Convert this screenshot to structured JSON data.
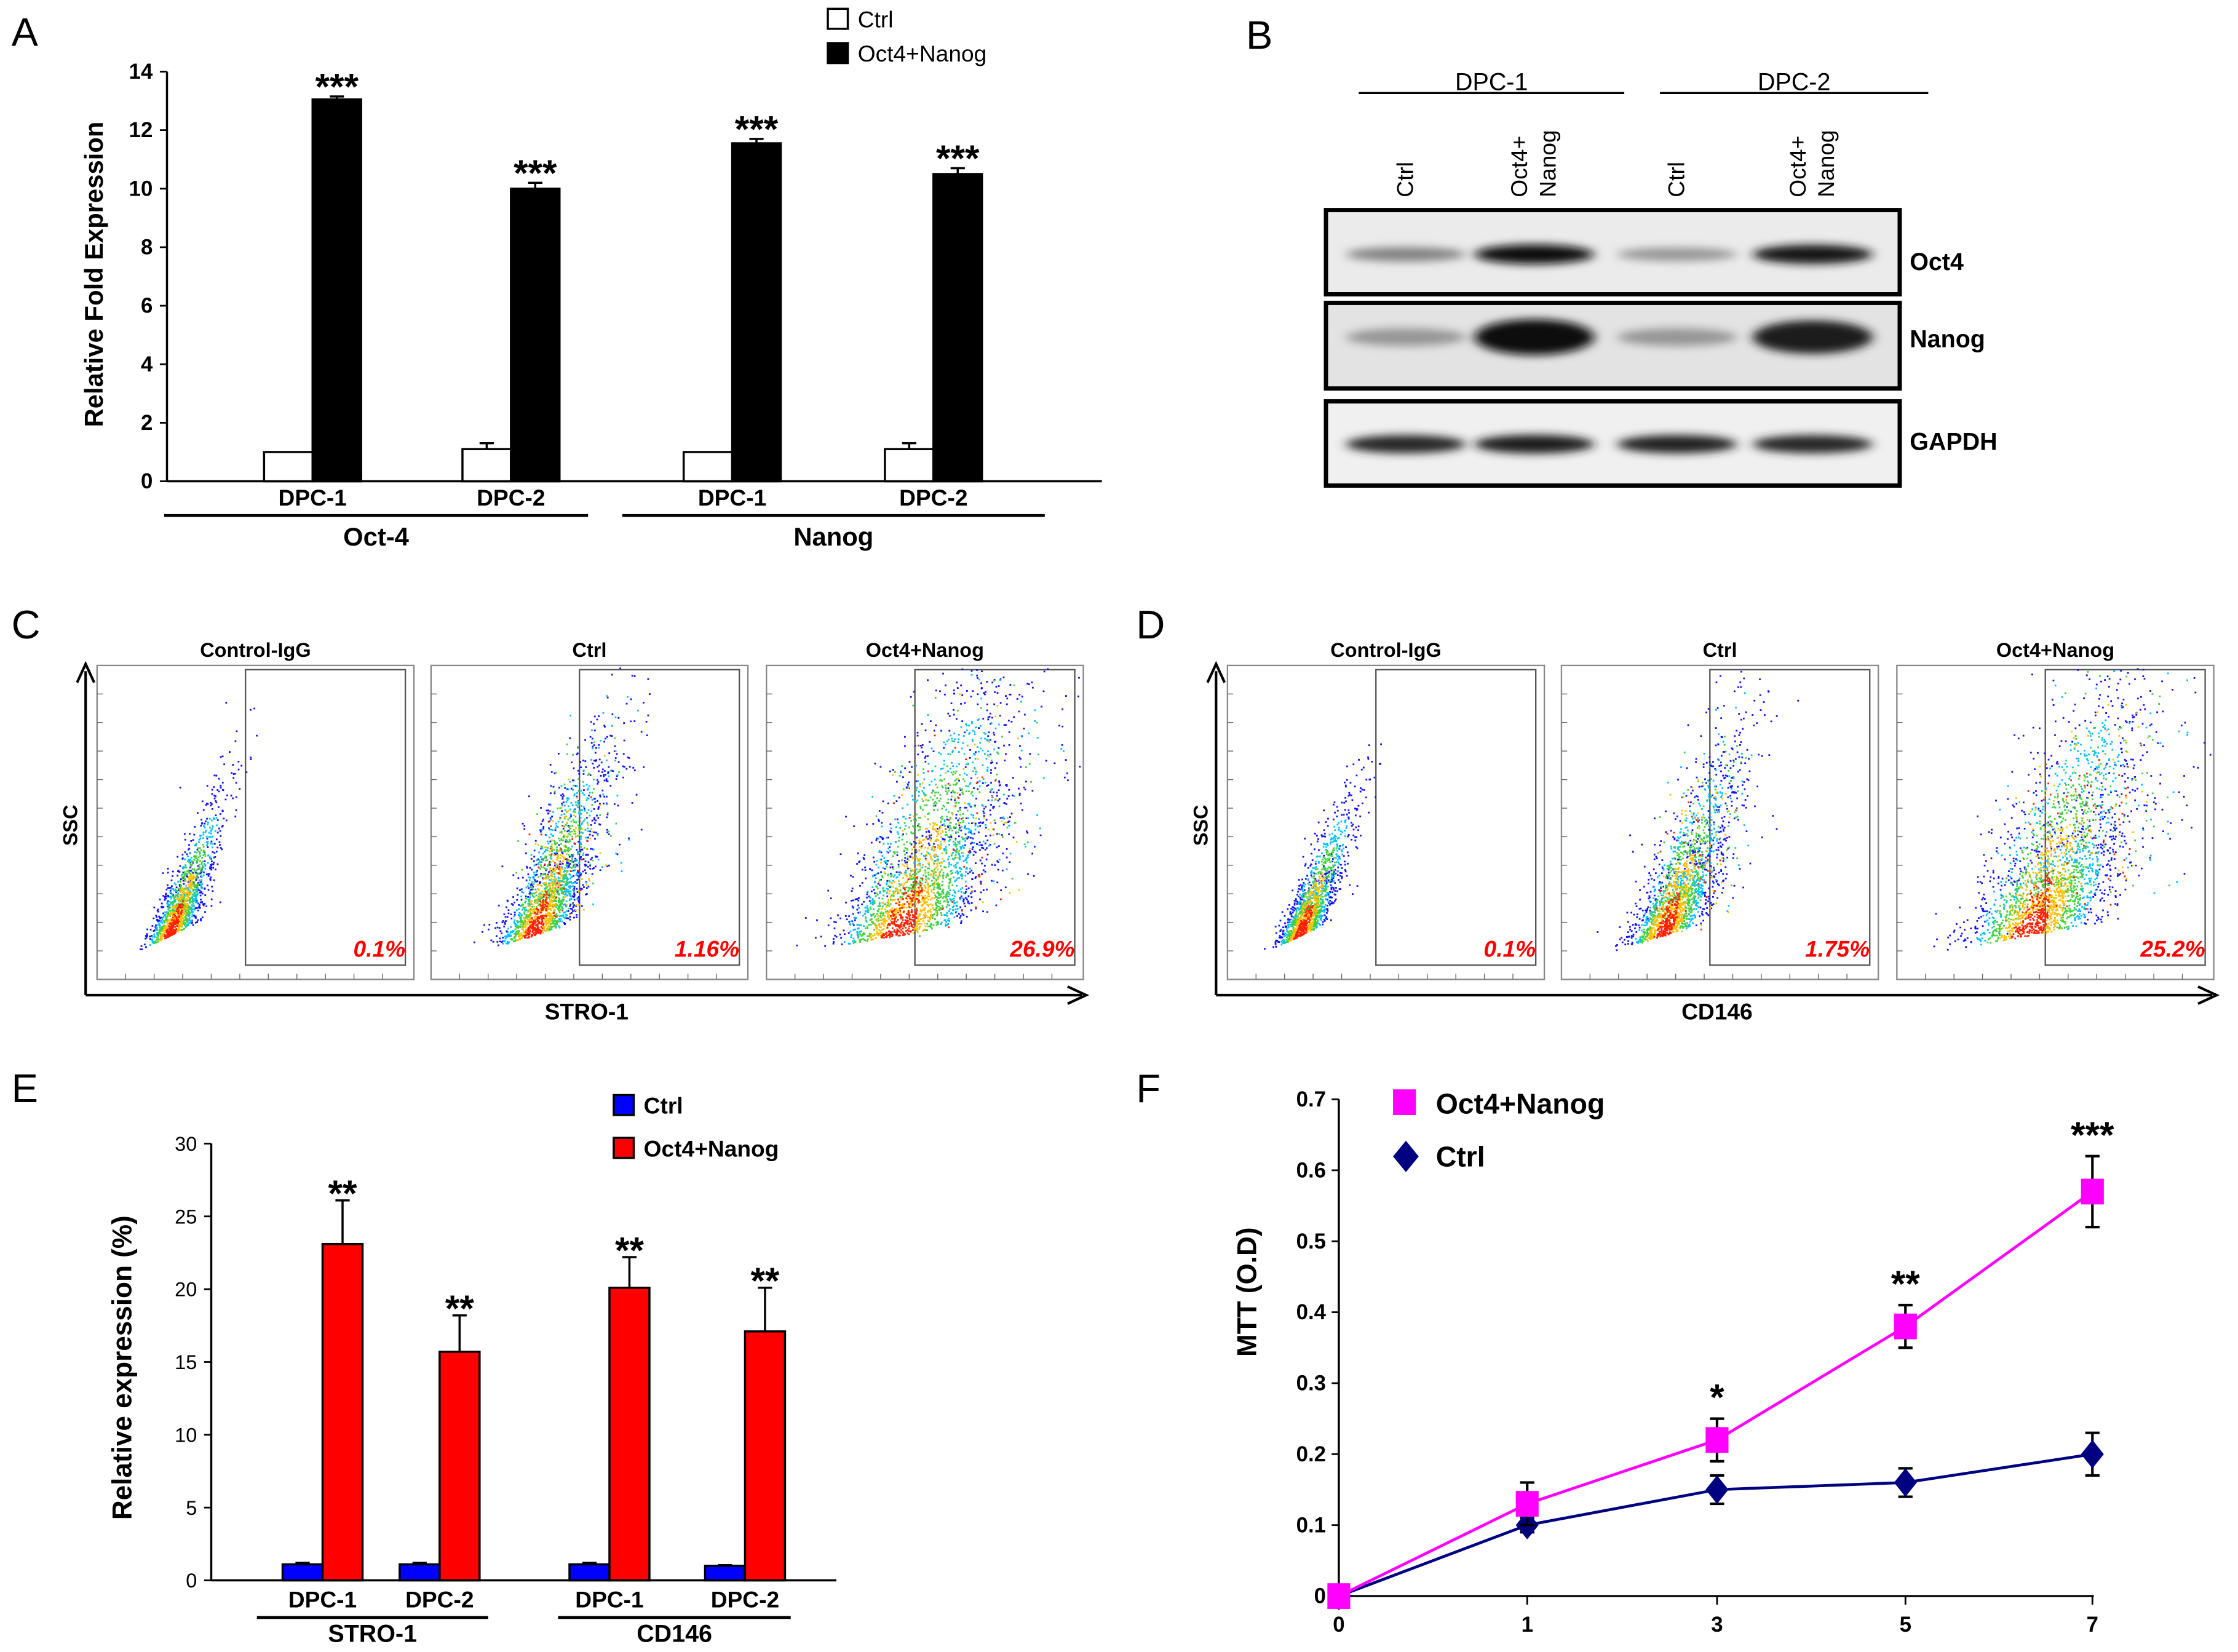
{
  "panel_labels": [
    "A",
    "B",
    "C",
    "D",
    "E",
    "F"
  ],
  "chart_data": [
    {
      "panel": "A",
      "type": "bar",
      "ylabel": "Relative Fold Expression",
      "ylim": [
        0,
        14
      ],
      "yticks": [
        "0",
        "2",
        "4",
        "6",
        "8",
        "10",
        "12",
        "14"
      ],
      "categories": [
        "DPC-1",
        "DPC-2",
        "DPC-1",
        "DPC-2"
      ],
      "groups": [
        {
          "label": "Oct-4",
          "members": [
            0,
            1
          ]
        },
        {
          "label": "Nanog",
          "members": [
            2,
            3
          ]
        }
      ],
      "series": [
        {
          "name": "Ctrl",
          "color": "#ffffff",
          "values": [
            1.0,
            1.1,
            1.0,
            1.1
          ],
          "errors": [
            0,
            0.2,
            0,
            0.2
          ]
        },
        {
          "name": "Oct4+Nanog",
          "color": "#000000",
          "values": [
            13.05,
            10.0,
            11.55,
            10.5
          ],
          "errors": [
            0.1,
            0.2,
            0.15,
            0.2
          ]
        }
      ],
      "annotations": [
        "***",
        "***",
        "***",
        "***"
      ],
      "legend": "top-right"
    },
    {
      "panel": "E",
      "type": "bar",
      "ylabel": "Relative expression (%)",
      "ylim": [
        0,
        30
      ],
      "yticks": [
        "0",
        "5",
        "10",
        "15",
        "20",
        "25",
        "30"
      ],
      "categories": [
        "DPC-1",
        "DPC-2",
        "DPC-1",
        "DPC-2"
      ],
      "groups": [
        {
          "label": "STRO-1",
          "members": [
            0,
            1
          ]
        },
        {
          "label": "CD146",
          "members": [
            2,
            3
          ]
        }
      ],
      "series": [
        {
          "name": "Ctrl",
          "color": "#0000ff",
          "values": [
            1.1,
            1.1,
            1.1,
            1.0
          ],
          "errors": [
            0.1,
            0.1,
            0.1,
            0.05
          ]
        },
        {
          "name": "Oct4+Nanog",
          "color": "#ff0000",
          "values": [
            23.1,
            15.7,
            20.1,
            17.1
          ],
          "errors": [
            3.0,
            2.5,
            2.1,
            3.0
          ]
        }
      ],
      "annotations": [
        "**",
        "**",
        "**",
        "**"
      ],
      "legend": "top-right"
    },
    {
      "panel": "F",
      "type": "line",
      "ylabel": "MTT (O.D)",
      "ylim": [
        0,
        0.7
      ],
      "yticks": [
        "0",
        "0.1",
        "0.2",
        "0.3",
        "0.4",
        "0.5",
        "0.6",
        "0.7"
      ],
      "x": [
        "0",
        "1",
        "3",
        "5",
        "7"
      ],
      "series": [
        {
          "name": "Oct4+Nanog",
          "color": "#ff00ff",
          "marker": "square",
          "values": [
            0,
            0.13,
            0.22,
            0.38,
            0.57
          ],
          "errors": [
            0,
            0.03,
            0.03,
            0.03,
            0.05
          ]
        },
        {
          "name": "Ctrl",
          "color": "#000080",
          "marker": "diamond",
          "values": [
            0,
            0.1,
            0.15,
            0.16,
            0.2
          ],
          "errors": [
            0,
            0.01,
            0.02,
            0.02,
            0.03
          ]
        }
      ],
      "annotations": [
        "",
        "",
        "*",
        "**",
        "***"
      ],
      "legend": "top-left"
    }
  ],
  "western_blot": {
    "groups": [
      "DPC-1",
      "DPC-2"
    ],
    "lanes": [
      "Ctrl",
      "Oct4+",
      "Nanog"
    ],
    "lane_labels": [
      [
        "Ctrl"
      ],
      [
        "Oct4+",
        "Nanog"
      ],
      [
        "Ctrl"
      ],
      [
        "Oct4+",
        "Nanog"
      ]
    ],
    "rows": [
      {
        "label": "Oct4",
        "intensity": [
          0.35,
          0.95,
          0.25,
          0.9
        ]
      },
      {
        "label": "Nanog",
        "intensity": [
          0.25,
          0.95,
          0.25,
          0.85
        ]
      },
      {
        "label": "GAPDH",
        "intensity": [
          0.8,
          0.85,
          0.82,
          0.8
        ]
      }
    ]
  },
  "flow_C": {
    "ylabel": "SSC",
    "xlabel": "STRO-1",
    "plots": [
      {
        "title": "Control-IgG",
        "percent": "0.1%"
      },
      {
        "title": "Ctrl",
        "percent": "1.16%"
      },
      {
        "title": "Oct4+Nanog",
        "percent": "26.9%"
      }
    ]
  },
  "flow_D": {
    "ylabel": "SSC",
    "xlabel": "CD146",
    "plots": [
      {
        "title": "Control-IgG",
        "percent": "0.1%"
      },
      {
        "title": "Ctrl",
        "percent": "1.75%"
      },
      {
        "title": "Oct4+Nanog",
        "percent": "25.2%"
      }
    ]
  },
  "colors": {
    "percent_text": "#ff0000",
    "magenta": "#ff00ff",
    "navy": "#000080"
  }
}
